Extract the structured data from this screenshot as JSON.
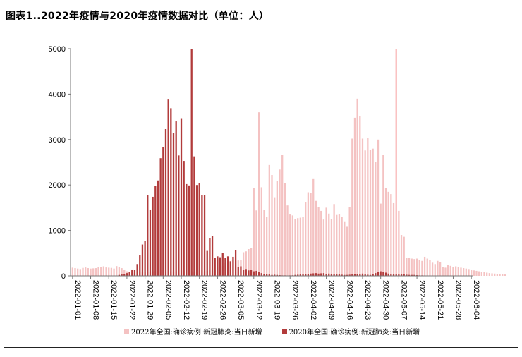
{
  "title": "图表1..2022年疫情与2020年疫情数据对比（单位：人）",
  "colors": {
    "series_2022": "#f4c2c2",
    "series_2020": "#b23b3b",
    "spike_2022": "#f9b7b7"
  },
  "chart_data": {
    "type": "bar",
    "ylim": [
      0,
      5000
    ],
    "yticks": [
      0,
      1000,
      2000,
      3000,
      4000,
      5000
    ],
    "grid": false,
    "legend_position": "bottom",
    "xtick_labels": [
      "2022-01-01",
      "2022-01-08",
      "2022-01-15",
      "2022-01-22",
      "2022-01-29",
      "2022-02-05",
      "2022-02-12",
      "2022-02-19",
      "2022-02-26",
      "2022-03-05",
      "2022-03-12",
      "2022-03-19",
      "2022-03-26",
      "2022-04-02",
      "2022-04-09",
      "2022-04-16",
      "2022-04-23",
      "2022-04-30",
      "2022-05-07",
      "2022-05-14",
      "2022-05-21",
      "2022-05-28",
      "2022-06-04"
    ],
    "series": [
      {
        "name": "2022年全国:确诊病例:新冠肺炎:当日新增",
        "start": "2022-01-01",
        "values": [
          180,
          170,
          160,
          150,
          175,
          185,
          170,
          160,
          165,
          170,
          190,
          200,
          210,
          185,
          180,
          175,
          160,
          215,
          200,
          170,
          140,
          100,
          80,
          60,
          60,
          70,
          75,
          80,
          85,
          90,
          95,
          100,
          110,
          120,
          130,
          140,
          120,
          110,
          100,
          95,
          100,
          110,
          120,
          115,
          110,
          105,
          100,
          95,
          90,
          120,
          130,
          100,
          110,
          130,
          115,
          125,
          200,
          210,
          220,
          280,
          300,
          330,
          340,
          330,
          340,
          350,
          520,
          540,
          590,
          620,
          1940,
          1440,
          3600,
          1950,
          1450,
          1300,
          2440,
          2220,
          1730,
          2090,
          2340,
          2660,
          2040,
          1550,
          1350,
          1330,
          1250,
          1270,
          1280,
          1300,
          1620,
          1840,
          1830,
          2130,
          1650,
          1510,
          1430,
          1240,
          1500,
          1370,
          1250,
          1580,
          1340,
          1350,
          1300,
          1200,
          1080,
          1510,
          3020,
          3480,
          3900,
          3520,
          3020,
          2760,
          3040,
          2770,
          2800,
          2500,
          3000,
          1590,
          2670,
          1930,
          1850,
          1800,
          1600,
          5000,
          1430,
          900,
          860,
          400,
          390,
          380,
          370,
          380,
          350,
          330,
          420,
          380,
          350,
          290,
          260,
          330,
          300,
          200,
          180,
          240,
          220,
          200,
          210,
          190,
          180,
          170,
          160,
          150,
          140,
          120,
          110,
          100,
          90,
          80,
          70,
          60,
          55,
          50,
          45,
          40,
          35,
          30
        ]
      },
      {
        "name": "2020年全国:确诊病例:新冠肺炎:当日新增",
        "start": "2022-01-19",
        "values": [
          20,
          30,
          40,
          60,
          80,
          140,
          130,
          260,
          450,
          690,
          770,
          1770,
          1460,
          1740,
          1980,
          2100,
          2590,
          2830,
          3230,
          3880,
          3690,
          3140,
          3400,
          2650,
          3470,
          2530,
          2020,
          1990,
          5000,
          2630,
          2000,
          2040,
          1770,
          1780,
          550,
          830,
          880,
          400,
          430,
          410,
          500,
          400,
          430,
          320,
          420,
          570,
          200,
          210,
          140,
          150,
          120,
          130,
          100,
          110,
          80,
          60,
          40,
          40,
          30,
          20,
          25,
          20,
          15,
          10,
          10,
          8,
          10,
          12,
          20,
          25,
          30,
          35,
          40,
          45,
          50,
          55,
          60,
          50,
          55,
          60,
          45,
          50,
          40,
          35,
          30,
          30,
          25,
          20,
          20,
          25,
          30,
          35,
          40,
          45,
          50,
          30,
          25,
          20,
          40,
          60,
          80,
          100,
          90,
          70,
          50,
          40,
          30,
          30,
          30,
          30,
          30,
          25,
          20,
          20,
          20,
          15,
          10,
          10,
          8,
          5,
          5,
          5,
          5,
          5,
          5,
          5,
          5,
          5,
          5
        ]
      }
    ]
  }
}
